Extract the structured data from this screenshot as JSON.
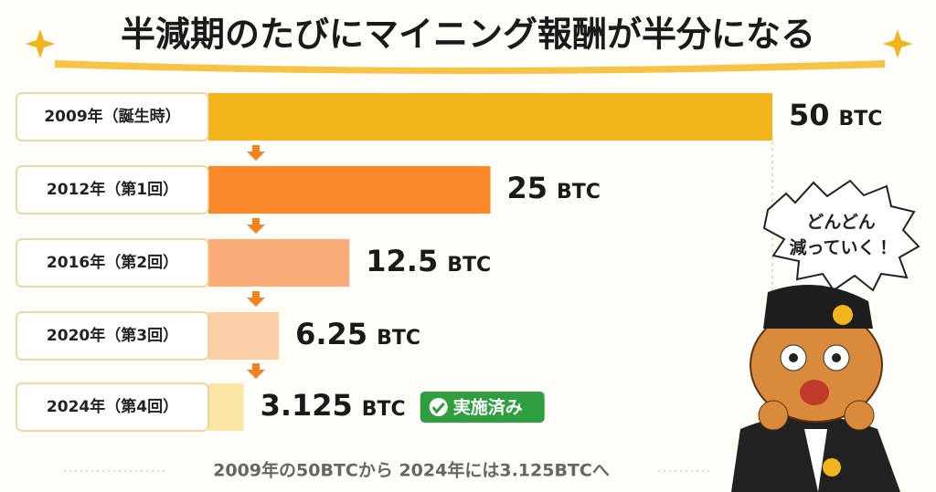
{
  "chart_data": {
    "type": "hbar",
    "title": "半減期のたびにマイニング報酬が半分になる",
    "categories": [
      "2009年（誕生時）",
      "2012年（第1回）",
      "2016年（第2回）",
      "2020年（第3回）",
      "2024年（第4回）"
    ],
    "values": [
      50,
      25,
      12.5,
      6.25,
      3.125
    ],
    "unit": "BTC",
    "colors": [
      "#f2b51c",
      "#f7892b",
      "#f9ab78",
      "#fbcfa6",
      "#fbe6a6"
    ],
    "badge": "実施済み",
    "footer": "2009年の50BTCから 2024年には3.125BTCへ",
    "bubble": [
      "どんどん",
      "減っていく！"
    ]
  }
}
